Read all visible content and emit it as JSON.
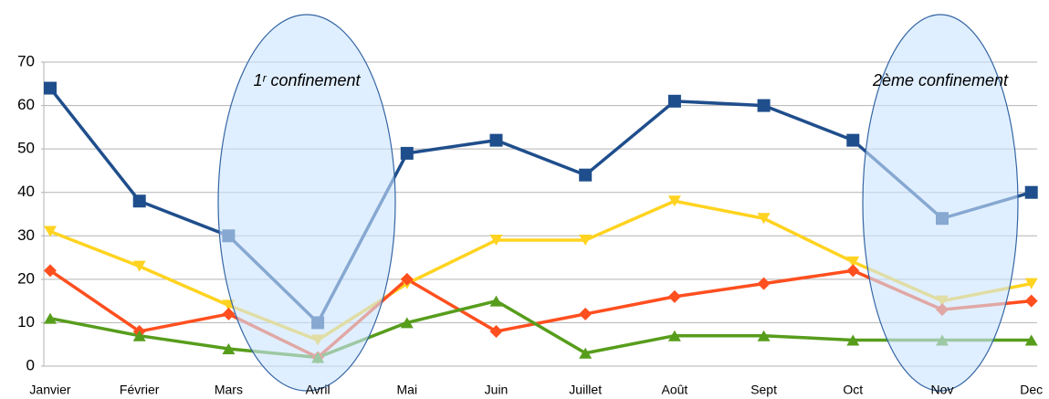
{
  "chart_data": {
    "type": "line",
    "categories": [
      "Janvier",
      "Février",
      "Mars",
      "Avril",
      "Mai",
      "Juin",
      "Juillet",
      "Août",
      "Sept",
      "Oct",
      "Nov",
      "Dec"
    ],
    "series": [
      {
        "color": "#1f4e8c",
        "marker": "square",
        "values": [
          64,
          38,
          30,
          10,
          49,
          52,
          44,
          61,
          60,
          52,
          34,
          40
        ]
      },
      {
        "color": "#ffd320",
        "marker": "triangle-down",
        "values": [
          31,
          23,
          14,
          6,
          19,
          29,
          29,
          38,
          34,
          24,
          15,
          19
        ]
      },
      {
        "color": "#ff4f1f",
        "marker": "diamond",
        "values": [
          22,
          8,
          12,
          2,
          20,
          8,
          12,
          16,
          19,
          22,
          13,
          15
        ]
      },
      {
        "color": "#579d1c",
        "marker": "triangle-up",
        "values": [
          11,
          7,
          4,
          2,
          10,
          15,
          3,
          7,
          7,
          6,
          6,
          6
        ]
      }
    ],
    "ylim": [
      0,
      70
    ],
    "yticks": [
      0,
      10,
      20,
      30,
      40,
      50,
      60,
      70
    ],
    "grid": true,
    "annotations": [
      "1ʳ confinement",
      "2ème confinement"
    ]
  }
}
